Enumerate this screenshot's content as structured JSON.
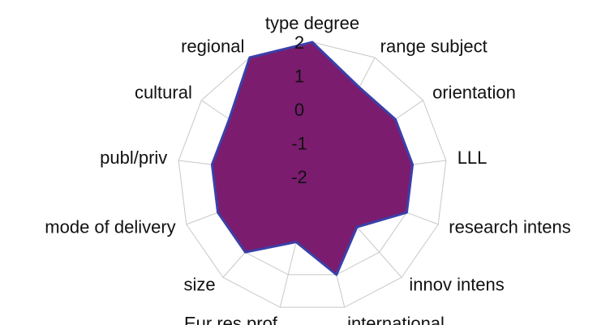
{
  "chart_data": {
    "type": "radar",
    "categories": [
      "type degree",
      "range subject",
      "orientation",
      "LLL",
      "research intens",
      "innov intens",
      "international",
      "Eur res prof",
      "size",
      "mode of delivery",
      "publ/priv",
      "cultural",
      "regional"
    ],
    "series": [
      {
        "color": "#7b1c6f",
        "values": [
          2,
          1,
          1,
          1,
          1,
          0,
          1,
          0,
          1,
          1,
          1,
          1,
          2
        ]
      }
    ],
    "edge_color": "#3a40a8",
    "ylim": [
      -2,
      2
    ],
    "yticks": [
      -2,
      -1,
      0,
      1,
      2
    ],
    "grid": true
  }
}
